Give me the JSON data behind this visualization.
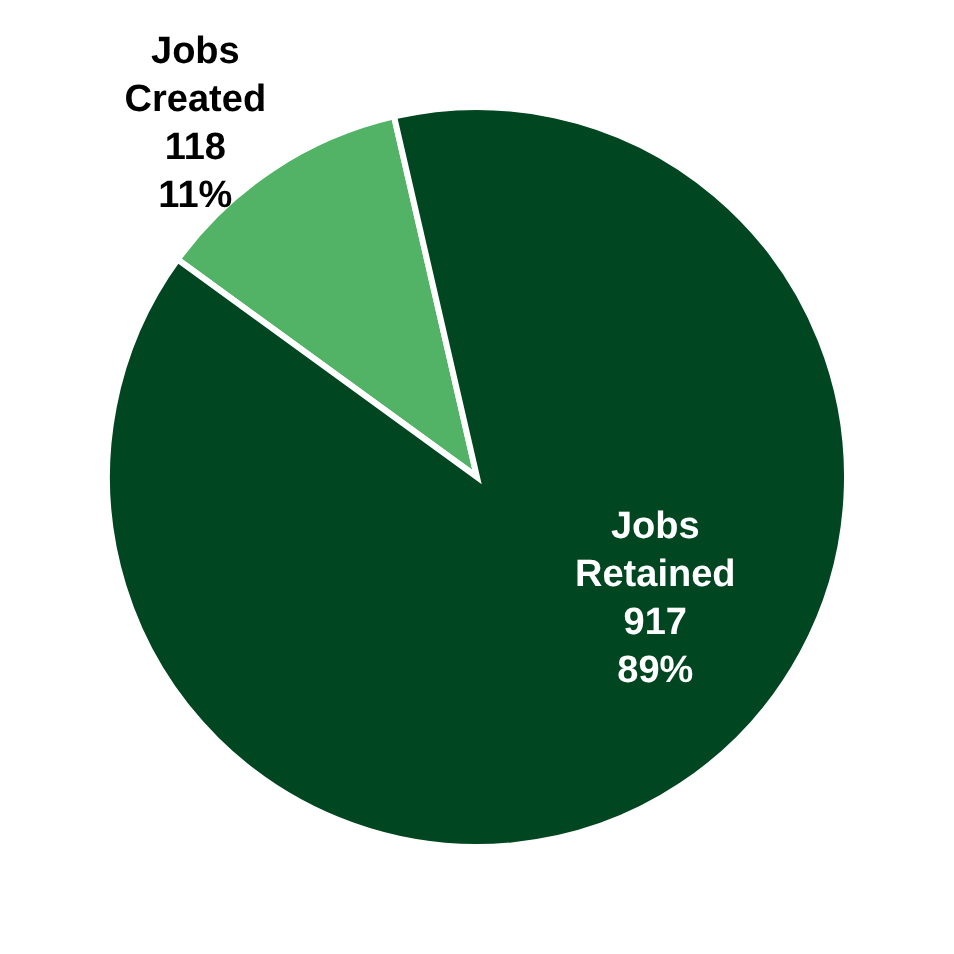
{
  "chart_data": {
    "type": "pie",
    "categories": [
      "Jobs Created",
      "Jobs Retained"
    ],
    "values": [
      118,
      917
    ],
    "colors": [
      "#52b265",
      "#004620"
    ],
    "value_labels": [
      "118\n11%",
      "917\n89%"
    ],
    "legend": false
  }
}
